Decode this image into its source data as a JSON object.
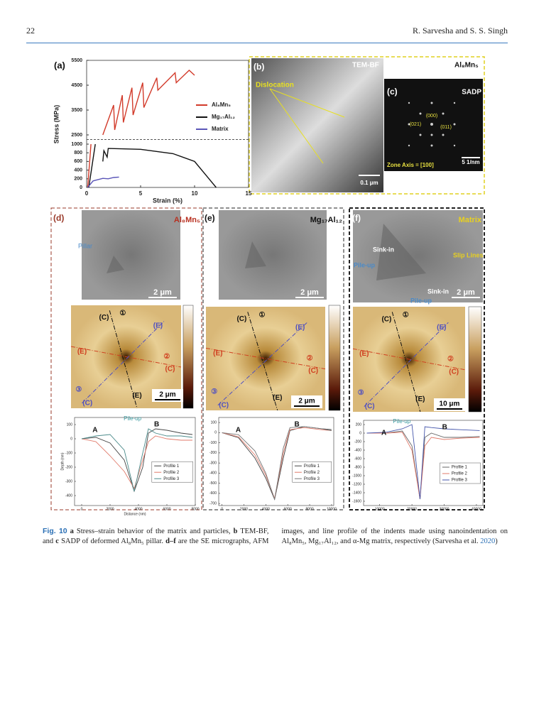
{
  "header": {
    "page_number": "22",
    "running_head": "R. Sarvesha and S. S. Singh"
  },
  "figure": {
    "afm_markers": [
      "①",
      "②",
      "③",
      "(C)",
      "(E)"
    ],
    "a": {
      "label": "(a)",
      "y_label": "Stress (MPa)",
      "x_label": "Strain (%)",
      "xlim": [
        0,
        15
      ],
      "xticks": [
        0,
        5,
        10,
        15
      ],
      "yticks": [
        0,
        200,
        400,
        600,
        800,
        1000,
        2500,
        3500,
        4500,
        5500
      ],
      "ybreak": [
        1000,
        2500
      ],
      "series": [
        {
          "name": "Al₈Mn₅",
          "color": "#d23a2a",
          "x": [
            0.1,
            0.4,
            0.5,
            1.5,
            2.5,
            2.6,
            3.3,
            3.4,
            4.2,
            4.3,
            5.2,
            5.3,
            6.5,
            6.6,
            8.2,
            8.3,
            9.5,
            10
          ],
          "y": [
            0,
            1000,
            null,
            2500,
            3700,
            2700,
            4100,
            3000,
            4400,
            3300,
            4600,
            3600,
            4800,
            4300,
            5000,
            4600,
            5100,
            4900
          ]
        },
        {
          "name": "Mg₁₇Al₁₂",
          "color": "#111111",
          "x": [
            0.2,
            0.8,
            0.9,
            1.5,
            1.6,
            1.9,
            2,
            5,
            8,
            10,
            11,
            12
          ],
          "y": [
            0,
            1000,
            null,
            600,
            850,
            700,
            900,
            880,
            780,
            600,
            300,
            0
          ]
        },
        {
          "name": "Matrix",
          "color": "#5a55b8",
          "x": [
            0.1,
            0.6,
            1.2,
            1.5,
            2,
            2.5,
            3
          ],
          "y": [
            0,
            150,
            190,
            210,
            200,
            230,
            240
          ]
        }
      ]
    },
    "b": {
      "label": "(b)",
      "title": "TEM-BF",
      "material": "Al₈Mn₅",
      "annotation": "Dislocation",
      "scale": "0.1 μm"
    },
    "c": {
      "label": "(c)",
      "title": "SADP",
      "spots": [
        "(000)",
        "(021)",
        "(011)"
      ],
      "zone_axis": "Zone Axis = [100]",
      "scale": "5 1/nm"
    },
    "d": {
      "label": "(d)",
      "material": "Al₈Mn₅",
      "annotations": [
        "Pillar"
      ],
      "sem_scale": "2 μm",
      "afm_scale": "2 μm",
      "profile": {
        "y_label": "Depth (nm)",
        "x_label": "Distance (nm)",
        "points": [
          "A",
          "B"
        ],
        "note": "Pile-up",
        "xlim": [
          -500,
          8000
        ],
        "xticks": [
          0,
          2000,
          4000,
          6000,
          8000
        ],
        "ylim": [
          -470,
          150
        ],
        "yticks": [
          100,
          0,
          -100,
          -200,
          -300,
          -400
        ],
        "series": [
          {
            "name": "Profile 1",
            "color": "#444444",
            "x": [
              0,
              1000,
              2000,
              3000,
              3700,
              4300,
              4700,
              5200,
              6000,
              7000,
              7800
            ],
            "y": [
              0,
              10,
              -30,
              -150,
              -370,
              -200,
              40,
              70,
              60,
              40,
              30
            ]
          },
          {
            "name": "Profile 2",
            "color": "#e07a6a",
            "x": [
              0,
              1000,
              2000,
              3000,
              3700,
              4300,
              4700,
              5200,
              6000,
              7000,
              7800
            ],
            "y": [
              0,
              -20,
              -120,
              -230,
              -350,
              -150,
              -20,
              20,
              0,
              -10,
              -10
            ]
          },
          {
            "name": "Profile 3",
            "color": "#4a8a8a",
            "x": [
              0,
              1000,
              2000,
              3000,
              3700,
              4300,
              4700,
              5200,
              6000,
              7000,
              7800
            ],
            "y": [
              0,
              20,
              30,
              -80,
              -370,
              -100,
              70,
              40,
              20,
              20,
              10
            ]
          }
        ]
      }
    },
    "e": {
      "label": "(e)",
      "material": "Mg₁₇Al₁₂",
      "sem_scale": "2 μm",
      "afm_scale": "2 μm",
      "profile": {
        "points": [
          "A",
          "B"
        ],
        "xlim": [
          -300,
          10200
        ],
        "xticks": [
          0,
          2000,
          4000,
          6000,
          8000,
          10000
        ],
        "ylim": [
          -720,
          150
        ],
        "yticks": [
          100,
          0,
          -100,
          -200,
          -300,
          -400,
          -500,
          -600,
          -700
        ],
        "series": [
          {
            "name": "Profile 1",
            "color": "#444444",
            "x": [
              0,
              1500,
              3000,
              4000,
              4800,
              5600,
              6200,
              7500,
              9000,
              10000
            ],
            "y": [
              0,
              -50,
              -250,
              -450,
              -660,
              -250,
              20,
              60,
              40,
              30
            ]
          },
          {
            "name": "Profile 2",
            "color": "#e07a6a",
            "x": [
              0,
              1500,
              3000,
              4000,
              4800,
              5600,
              6200,
              7500,
              9000,
              10000
            ],
            "y": [
              0,
              -40,
              -220,
              -420,
              -650,
              -200,
              30,
              50,
              30,
              20
            ]
          },
          {
            "name": "Profile 3",
            "color": "#777777",
            "x": [
              0,
              1500,
              3000,
              4000,
              4800,
              5600,
              6200,
              7500,
              9000,
              10000
            ],
            "y": [
              0,
              -20,
              -180,
              -400,
              -660,
              -150,
              50,
              60,
              40,
              20
            ]
          }
        ]
      }
    },
    "f": {
      "label": "(f)",
      "material": "Matrix",
      "annotations": [
        "Sink-in",
        "Slip Lines",
        "Pile-up",
        "Sink-in",
        "Pile-up"
      ],
      "sem_scale": "2 μm",
      "afm_scale": "10 μm",
      "profile": {
        "points": [
          "A",
          "B"
        ],
        "note": "Pile-up",
        "xlim": [
          5000,
          42000
        ],
        "xticks": [
          10000,
          20000,
          30000,
          40000
        ],
        "ylim": [
          -1700,
          300
        ],
        "yticks": [
          200,
          0,
          -200,
          -400,
          -600,
          -800,
          -1000,
          -1200,
          -1400,
          -1600
        ],
        "series": [
          {
            "name": "Profile 1",
            "color": "#666666",
            "x": [
              6000,
              12000,
              17000,
              20000,
              22500,
              24000,
              26000,
              30000,
              35000,
              41000
            ],
            "y": [
              0,
              0,
              50,
              -300,
              -1550,
              -100,
              0,
              -100,
              -100,
              -80
            ]
          },
          {
            "name": "Profile 2",
            "color": "#e07a6a",
            "x": [
              6000,
              12000,
              17000,
              20000,
              22500,
              24000,
              26000,
              30000,
              35000,
              41000
            ],
            "y": [
              0,
              0,
              20,
              -400,
              -1550,
              -300,
              -100,
              -150,
              -120,
              -100
            ]
          },
          {
            "name": "Profile 3",
            "color": "#4455aa",
            "x": [
              6000,
              12000,
              17000,
              20000,
              22500,
              24000,
              26000,
              30000,
              35000,
              41000
            ],
            "y": [
              0,
              20,
              100,
              200,
              -1550,
              150,
              130,
              100,
              80,
              60
            ]
          }
        ]
      }
    }
  },
  "caption": {
    "label": "Fig. 10",
    "parts": [
      "a",
      " Stress–strain behavior of the matrix and particles, ",
      "b",
      " TEM-BF, and ",
      "c",
      " SADP of deformed Al₈Mn₅ pillar. ",
      "d–f",
      " are the SE micrographs, AFM images, and line profile of the indents made using nanoindentation on Al₈Mn₅, Mg₁₇Al₁₂, and α-Mg matrix, respectively (Sarvesha et al. ",
      "2020",
      ")"
    ]
  }
}
